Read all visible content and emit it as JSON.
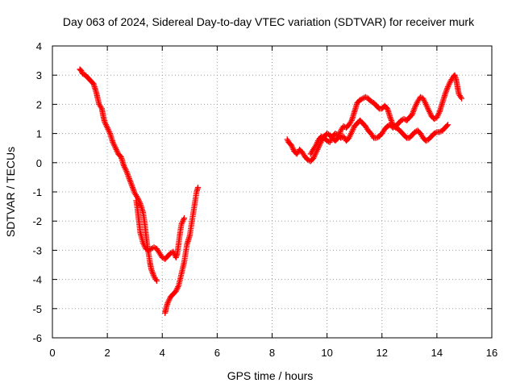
{
  "chart_data": {
    "type": "scatter",
    "title": "Day 063 of 2024, Sidereal Day-to-day VTEC variation (SDTVAR) for receiver murk",
    "xlabel": "GPS time / hours",
    "ylabel": "SDTVAR / TECUs",
    "xlim": [
      0,
      16
    ],
    "ylim": [
      -6,
      4
    ],
    "x_ticks": [
      0,
      2,
      4,
      6,
      8,
      10,
      12,
      14,
      16
    ],
    "y_ticks": [
      -6,
      -5,
      -4,
      -3,
      -2,
      -1,
      0,
      1,
      2,
      3,
      4
    ],
    "grid": true,
    "marker": "plus",
    "series": [
      {
        "color": "#ff0000",
        "segments": [
          [
            [
              1.0,
              3.2
            ],
            [
              1.05,
              3.15
            ],
            [
              1.1,
              3.05
            ],
            [
              1.2,
              3.0
            ],
            [
              1.3,
              2.9
            ],
            [
              1.4,
              2.8
            ],
            [
              1.5,
              2.7
            ],
            [
              1.55,
              2.55
            ],
            [
              1.6,
              2.4
            ],
            [
              1.65,
              2.2
            ],
            [
              1.7,
              2.0
            ],
            [
              1.8,
              1.85
            ],
            [
              1.85,
              1.6
            ],
            [
              1.9,
              1.4
            ],
            [
              2.0,
              1.2
            ],
            [
              2.1,
              1.0
            ],
            [
              2.2,
              0.7
            ],
            [
              2.3,
              0.5
            ],
            [
              2.4,
              0.3
            ],
            [
              2.5,
              0.2
            ],
            [
              2.6,
              -0.1
            ],
            [
              2.7,
              -0.3
            ],
            [
              2.8,
              -0.55
            ],
            [
              2.9,
              -0.8
            ],
            [
              3.0,
              -1.05
            ],
            [
              3.1,
              -1.2
            ],
            [
              3.2,
              -1.4
            ],
            [
              3.3,
              -1.7
            ],
            [
              3.35,
              -2.0
            ],
            [
              3.4,
              -2.4
            ],
            [
              3.45,
              -2.8
            ],
            [
              3.5,
              -3.1
            ],
            [
              3.55,
              -3.4
            ],
            [
              3.6,
              -3.65
            ],
            [
              3.7,
              -3.9
            ],
            [
              3.8,
              -4.05
            ]
          ],
          [
            [
              3.05,
              -1.3
            ],
            [
              3.1,
              -1.6
            ],
            [
              3.15,
              -2.0
            ],
            [
              3.2,
              -2.4
            ],
            [
              3.3,
              -2.75
            ],
            [
              3.4,
              -2.95
            ],
            [
              3.5,
              -3.0
            ],
            [
              3.6,
              -2.95
            ],
            [
              3.7,
              -2.9
            ],
            [
              3.8,
              -2.95
            ],
            [
              3.9,
              -3.1
            ],
            [
              4.0,
              -3.25
            ],
            [
              4.1,
              -3.3
            ],
            [
              4.2,
              -3.2
            ],
            [
              4.3,
              -3.1
            ],
            [
              4.4,
              -3.05
            ],
            [
              4.5,
              -3.25
            ],
            [
              4.55,
              -3.1
            ],
            [
              4.6,
              -2.75
            ],
            [
              4.65,
              -2.4
            ],
            [
              4.7,
              -2.1
            ],
            [
              4.8,
              -1.9
            ]
          ],
          [
            [
              4.1,
              -5.15
            ],
            [
              4.15,
              -4.95
            ],
            [
              4.2,
              -4.8
            ],
            [
              4.3,
              -4.6
            ],
            [
              4.4,
              -4.5
            ],
            [
              4.5,
              -4.4
            ],
            [
              4.6,
              -4.2
            ],
            [
              4.7,
              -3.8
            ],
            [
              4.8,
              -3.4
            ],
            [
              4.85,
              -3.1
            ],
            [
              4.9,
              -2.8
            ],
            [
              5.0,
              -2.5
            ],
            [
              5.05,
              -2.2
            ],
            [
              5.1,
              -1.9
            ],
            [
              5.15,
              -1.6
            ],
            [
              5.2,
              -1.3
            ],
            [
              5.25,
              -1.0
            ],
            [
              5.3,
              -0.85
            ]
          ],
          [
            [
              8.55,
              0.8
            ],
            [
              8.6,
              0.7
            ],
            [
              8.7,
              0.6
            ],
            [
              8.75,
              0.5
            ],
            [
              8.8,
              0.4
            ],
            [
              8.9,
              0.3
            ],
            [
              9.0,
              0.45
            ],
            [
              9.1,
              0.35
            ],
            [
              9.2,
              0.2
            ],
            [
              9.3,
              0.1
            ],
            [
              9.4,
              0.05
            ],
            [
              9.5,
              0.15
            ],
            [
              9.6,
              0.35
            ],
            [
              9.7,
              0.55
            ],
            [
              9.8,
              0.75
            ],
            [
              9.9,
              0.9
            ],
            [
              10.0,
              1.0
            ],
            [
              10.1,
              0.95
            ],
            [
              10.2,
              0.85
            ],
            [
              10.3,
              0.75
            ],
            [
              10.4,
              0.85
            ],
            [
              10.5,
              1.1
            ],
            [
              10.6,
              1.25
            ],
            [
              10.7,
              1.2
            ],
            [
              10.8,
              1.3
            ],
            [
              10.9,
              1.45
            ],
            [
              11.0,
              1.75
            ],
            [
              11.1,
              2.05
            ],
            [
              11.2,
              2.15
            ],
            [
              11.3,
              2.2
            ],
            [
              11.4,
              2.25
            ],
            [
              11.5,
              2.2
            ],
            [
              11.6,
              2.1
            ],
            [
              11.7,
              2.05
            ],
            [
              11.8,
              1.95
            ],
            [
              11.9,
              1.85
            ],
            [
              12.0,
              1.85
            ],
            [
              12.1,
              1.95
            ],
            [
              12.2,
              1.85
            ],
            [
              12.3,
              1.55
            ],
            [
              12.4,
              1.3
            ],
            [
              12.5,
              1.2
            ],
            [
              12.6,
              1.15
            ],
            [
              12.7,
              1.05
            ],
            [
              12.8,
              0.95
            ],
            [
              12.9,
              0.85
            ],
            [
              13.0,
              0.85
            ],
            [
              13.1,
              0.95
            ],
            [
              13.2,
              1.05
            ],
            [
              13.3,
              1.1
            ],
            [
              13.4,
              1.0
            ],
            [
              13.5,
              0.85
            ],
            [
              13.6,
              0.75
            ],
            [
              13.7,
              0.8
            ],
            [
              13.8,
              0.9
            ],
            [
              13.9,
              1.0
            ],
            [
              14.0,
              1.05
            ],
            [
              14.1,
              1.05
            ],
            [
              14.2,
              1.1
            ],
            [
              14.3,
              1.2
            ],
            [
              14.4,
              1.3
            ]
          ],
          [
            [
              9.4,
              0.3
            ],
            [
              9.5,
              0.45
            ],
            [
              9.6,
              0.6
            ],
            [
              9.7,
              0.8
            ],
            [
              9.8,
              0.9
            ],
            [
              9.9,
              0.85
            ],
            [
              10.0,
              0.75
            ],
            [
              10.1,
              0.7
            ],
            [
              10.2,
              0.9
            ],
            [
              10.3,
              1.0
            ],
            [
              10.4,
              0.95
            ],
            [
              10.5,
              0.85
            ],
            [
              10.6,
              0.9
            ],
            [
              10.7,
              0.75
            ],
            [
              10.8,
              0.85
            ],
            [
              10.9,
              1.05
            ],
            [
              11.0,
              1.25
            ],
            [
              11.1,
              1.35
            ],
            [
              11.2,
              1.45
            ],
            [
              11.3,
              1.35
            ],
            [
              11.4,
              1.25
            ],
            [
              11.5,
              1.1
            ],
            [
              11.6,
              1.0
            ],
            [
              11.7,
              0.85
            ],
            [
              11.8,
              0.85
            ],
            [
              11.9,
              0.9
            ],
            [
              12.0,
              1.0
            ],
            [
              12.1,
              1.15
            ],
            [
              12.2,
              1.25
            ],
            [
              12.3,
              1.3
            ],
            [
              12.4,
              1.2
            ],
            [
              12.5,
              1.25
            ],
            [
              12.6,
              1.35
            ],
            [
              12.7,
              1.45
            ],
            [
              12.8,
              1.5
            ],
            [
              12.9,
              1.45
            ],
            [
              13.0,
              1.55
            ],
            [
              13.1,
              1.65
            ],
            [
              13.2,
              1.9
            ],
            [
              13.3,
              2.1
            ],
            [
              13.4,
              2.25
            ],
            [
              13.5,
              2.2
            ],
            [
              13.6,
              2.0
            ],
            [
              13.7,
              1.8
            ],
            [
              13.8,
              1.6
            ],
            [
              13.9,
              1.5
            ],
            [
              14.0,
              1.55
            ],
            [
              14.1,
              1.75
            ],
            [
              14.2,
              2.05
            ],
            [
              14.3,
              2.35
            ],
            [
              14.4,
              2.6
            ],
            [
              14.5,
              2.8
            ],
            [
              14.6,
              2.95
            ],
            [
              14.65,
              3.0
            ],
            [
              14.7,
              2.85
            ],
            [
              14.75,
              2.6
            ],
            [
              14.8,
              2.35
            ],
            [
              14.9,
              2.2
            ]
          ]
        ]
      }
    ]
  }
}
